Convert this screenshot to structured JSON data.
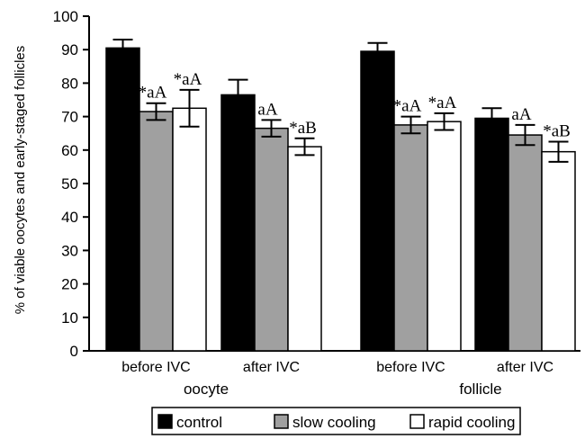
{
  "chart_data": {
    "type": "bar",
    "title": "",
    "xlabel": "",
    "ylabel": "% of viable oocytes and early-staged follicles",
    "ylim": [
      0,
      100
    ],
    "yticks": [
      0,
      10,
      20,
      30,
      40,
      50,
      60,
      70,
      80,
      90,
      100
    ],
    "grid": false,
    "legend_position": "bottom",
    "groups": [
      "oocyte",
      "follicle"
    ],
    "categories": [
      {
        "label": "before IVC",
        "group": "oocyte"
      },
      {
        "label": "after IVC",
        "group": "oocyte"
      },
      {
        "label": "before IVC",
        "group": "follicle"
      },
      {
        "label": "after IVC",
        "group": "follicle"
      }
    ],
    "series": [
      {
        "name": "control",
        "color": "#000000",
        "values": [
          90.5,
          76.5,
          89.5,
          69.5
        ],
        "errors": [
          2.5,
          4.5,
          2.5,
          3.0
        ],
        "annotations": [
          "",
          "",
          "",
          ""
        ]
      },
      {
        "name": "slow cooling",
        "color": "#a0a0a0",
        "values": [
          71.5,
          66.5,
          67.5,
          64.5
        ],
        "errors": [
          2.5,
          2.5,
          2.5,
          3.0
        ],
        "annotations": [
          "*aA",
          "aA",
          "*aA",
          "aA"
        ]
      },
      {
        "name": "rapid cooling",
        "color": "#ffffff",
        "values": [
          72.5,
          61.0,
          68.5,
          59.5
        ],
        "errors": [
          5.5,
          2.5,
          2.5,
          3.0
        ],
        "annotations": [
          "*aA",
          "*aB",
          "*aA",
          "*aB"
        ]
      }
    ]
  }
}
